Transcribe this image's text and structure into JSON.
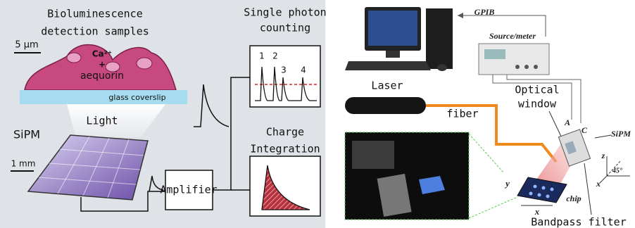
{
  "left": {
    "title_line1": "Bioluminescence",
    "title_line2": "detection samples",
    "scale_cells": "5 μm",
    "ion": "Ca²⁺",
    "plus": "+",
    "protein": "aequorin",
    "coverslip": "glass coverslip",
    "light": "Light",
    "sipm": "SiPM",
    "scale_sipm": "1 mm",
    "amplifier": "Amplifier",
    "counting_line1": "Single photon",
    "counting_line2": "counting",
    "peaks": [
      "1",
      "2",
      "3",
      "4"
    ],
    "integration_line1": "Charge",
    "integration_line2": "Integration"
  },
  "right": {
    "gpib": "GPIB",
    "source_meter": "Source/meter",
    "laser": "Laser",
    "optical_line1": "Optical",
    "optical_line2": "window",
    "fiber": "fiber",
    "anode": "A",
    "cathode": "C",
    "sipm": "SiPM",
    "axis_z": "z",
    "angle": "45°",
    "axis_x": "x",
    "chip_y": "y",
    "chip_x": "x",
    "chip": "chip",
    "filter": "Bandpass filter"
  }
}
